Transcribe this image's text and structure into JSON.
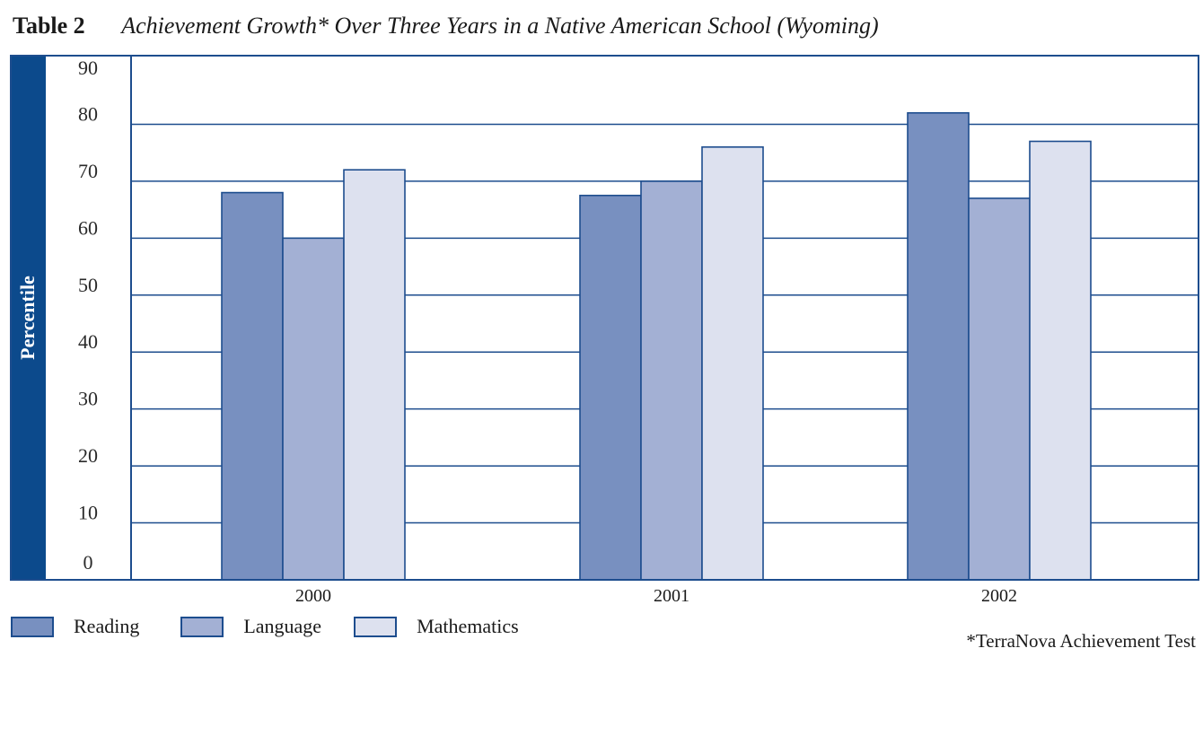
{
  "header": {
    "table_label": "Table 2",
    "title": "Achievement Growth* Over Three Years in a Native American School (Wyoming)"
  },
  "footnote": "*TerraNova Achievement Test",
  "colors": {
    "frame": "#1d4d8e",
    "ylabel_band": "#0c4a8c",
    "reading": "#7890c0",
    "language": "#a3b0d4",
    "mathematics": "#dde1ef"
  },
  "chart_data": {
    "type": "bar",
    "title": "Achievement Growth* Over Three Years in a Native American School (Wyoming)",
    "ylabel": "Percentile",
    "xlabel": "",
    "ylim": [
      0,
      90
    ],
    "yticks": [
      0,
      10,
      20,
      30,
      40,
      50,
      60,
      70,
      80,
      90
    ],
    "categories": [
      "2000",
      "2001",
      "2002"
    ],
    "series": [
      {
        "name": "Reading",
        "values": [
          68,
          67.5,
          82
        ]
      },
      {
        "name": "Language",
        "values": [
          60,
          70,
          67
        ]
      },
      {
        "name": "Mathematics",
        "values": [
          72,
          76,
          77
        ]
      }
    ],
    "grid": true,
    "legend": "bottom-left"
  }
}
